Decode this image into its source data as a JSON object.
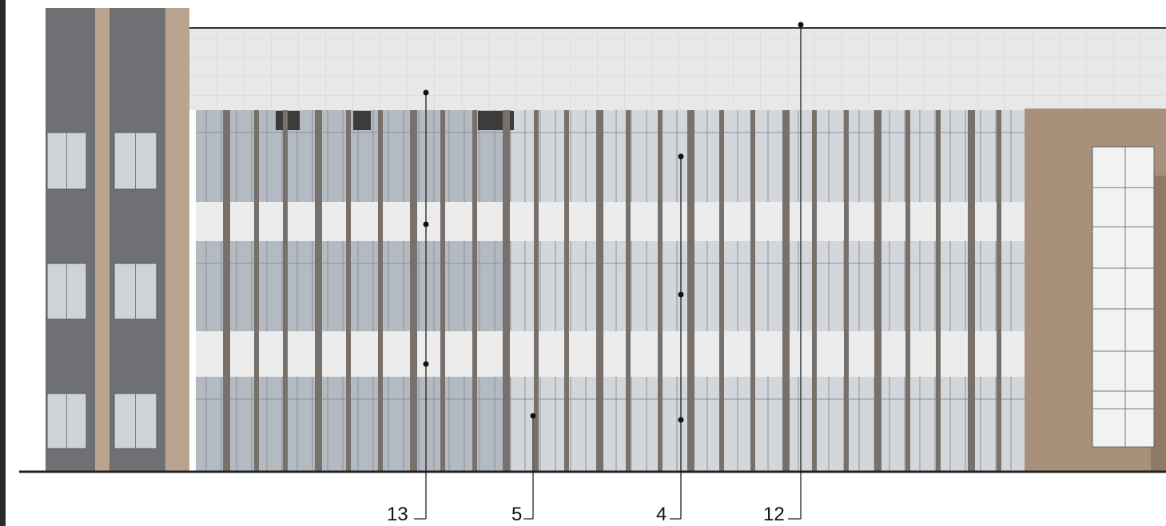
{
  "figure": {
    "type": "building-elevation",
    "colors": {
      "background": "#ffffff",
      "dark_tower": "#6e7074",
      "tan_strip": "#b8a48e",
      "parapet": "#e8e8e8",
      "glass": "#b4bac2",
      "glass_light": "#d3d7dc",
      "spandrel": "#ececec",
      "fin": "#77706b",
      "brown_panel": "#a8907a",
      "ground_line": "#222222",
      "leader": "#111111"
    },
    "callouts": [
      {
        "id": "c13",
        "label": "13"
      },
      {
        "id": "c5",
        "label": "5"
      },
      {
        "id": "c4",
        "label": "4"
      },
      {
        "id": "c12",
        "label": "12"
      }
    ]
  }
}
